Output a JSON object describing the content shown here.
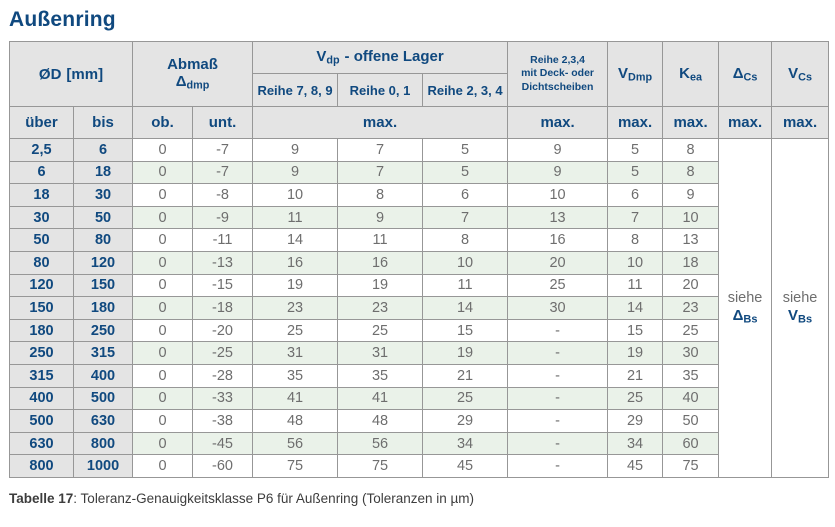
{
  "page_title": "Außenring",
  "colors": {
    "accent_blue": "#10497f",
    "value_gray": "#6e6e6e",
    "header_bg": "#e4e4e4",
    "row_green": "#eaf2e9",
    "grid_border": "#979797"
  },
  "table": {
    "header": {
      "od_symbol": "ØD",
      "od_unit": "[mm]",
      "abmass_label": "Abmaß",
      "abmass_symbol": "Δ",
      "abmass_sub": "dmp",
      "vdp_symbol": "V",
      "vdp_sub": "dp",
      "vdp_rest": "-  offene Lager",
      "reihe1": "Reihe 7, 8, 9",
      "reihe2": "Reihe 0, 1",
      "reihe3": "Reihe 2, 3, 4",
      "deck_line1": "Reihe 2,3,4",
      "deck_line2": "mit Deck- oder",
      "deck_line3": "Dichtscheiben",
      "vdmp_symbol": "V",
      "vdmp_sub": "Dmp",
      "kea_symbol": "K",
      "kea_sub": "ea",
      "dcs_symbol": "Δ",
      "dcs_sub": "Cs",
      "vcs_symbol": "V",
      "vcs_sub": "Cs",
      "ueber": "über",
      "bis": "bis",
      "ob": "ob.",
      "unt": "unt.",
      "max": "max."
    },
    "rows": [
      {
        "ueber": "2,5",
        "bis": "6",
        "ob": "0",
        "unt": "-7",
        "r789": "9",
        "r01": "7",
        "r234": "5",
        "deck": "9",
        "vdmp": "5",
        "kea": "8"
      },
      {
        "ueber": "6",
        "bis": "18",
        "ob": "0",
        "unt": "-7",
        "r789": "9",
        "r01": "7",
        "r234": "5",
        "deck": "9",
        "vdmp": "5",
        "kea": "8"
      },
      {
        "ueber": "18",
        "bis": "30",
        "ob": "0",
        "unt": "-8",
        "r789": "10",
        "r01": "8",
        "r234": "6",
        "deck": "10",
        "vdmp": "6",
        "kea": "9"
      },
      {
        "ueber": "30",
        "bis": "50",
        "ob": "0",
        "unt": "-9",
        "r789": "11",
        "r01": "9",
        "r234": "7",
        "deck": "13",
        "vdmp": "7",
        "kea": "10"
      },
      {
        "ueber": "50",
        "bis": "80",
        "ob": "0",
        "unt": "-11",
        "r789": "14",
        "r01": "11",
        "r234": "8",
        "deck": "16",
        "vdmp": "8",
        "kea": "13"
      },
      {
        "ueber": "80",
        "bis": "120",
        "ob": "0",
        "unt": "-13",
        "r789": "16",
        "r01": "16",
        "r234": "10",
        "deck": "20",
        "vdmp": "10",
        "kea": "18"
      },
      {
        "ueber": "120",
        "bis": "150",
        "ob": "0",
        "unt": "-15",
        "r789": "19",
        "r01": "19",
        "r234": "11",
        "deck": "25",
        "vdmp": "11",
        "kea": "20"
      },
      {
        "ueber": "150",
        "bis": "180",
        "ob": "0",
        "unt": "-18",
        "r789": "23",
        "r01": "23",
        "r234": "14",
        "deck": "30",
        "vdmp": "14",
        "kea": "23"
      },
      {
        "ueber": "180",
        "bis": "250",
        "ob": "0",
        "unt": "-20",
        "r789": "25",
        "r01": "25",
        "r234": "15",
        "deck": "-",
        "vdmp": "15",
        "kea": "25"
      },
      {
        "ueber": "250",
        "bis": "315",
        "ob": "0",
        "unt": "-25",
        "r789": "31",
        "r01": "31",
        "r234": "19",
        "deck": "-",
        "vdmp": "19",
        "kea": "30"
      },
      {
        "ueber": "315",
        "bis": "400",
        "ob": "0",
        "unt": "-28",
        "r789": "35",
        "r01": "35",
        "r234": "21",
        "deck": "-",
        "vdmp": "21",
        "kea": "35"
      },
      {
        "ueber": "400",
        "bis": "500",
        "ob": "0",
        "unt": "-33",
        "r789": "41",
        "r01": "41",
        "r234": "25",
        "deck": "-",
        "vdmp": "25",
        "kea": "40"
      },
      {
        "ueber": "500",
        "bis": "630",
        "ob": "0",
        "unt": "-38",
        "r789": "48",
        "r01": "48",
        "r234": "29",
        "deck": "-",
        "vdmp": "29",
        "kea": "50"
      },
      {
        "ueber": "630",
        "bis": "800",
        "ob": "0",
        "unt": "-45",
        "r789": "56",
        "r01": "56",
        "r234": "34",
        "deck": "-",
        "vdmp": "34",
        "kea": "60"
      },
      {
        "ueber": "800",
        "bis": "1000",
        "ob": "0",
        "unt": "-60",
        "r789": "75",
        "r01": "75",
        "r234": "45",
        "deck": "-",
        "vdmp": "45",
        "kea": "75"
      }
    ],
    "siehe": {
      "word": "siehe",
      "dbs_symbol": "Δ",
      "dbs_sub": "Bs",
      "vbs_symbol": "V",
      "vbs_sub": "Bs"
    }
  },
  "caption": {
    "label": "Tabelle 17",
    "text": ": Toleranz-Genauigkeitsklasse P6 für Außenring (Toleranzen in µm)"
  }
}
